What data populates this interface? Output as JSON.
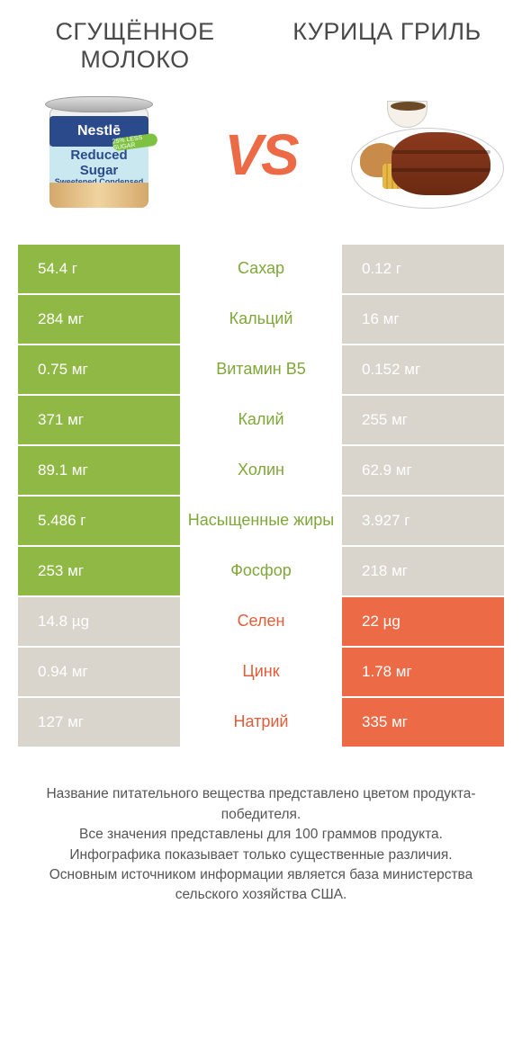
{
  "colors": {
    "green": "#8fb944",
    "orange": "#ec6a45",
    "muted": "#d9d4cc",
    "text_green": "#7fa739",
    "text_orange": "#e05e3a"
  },
  "header": {
    "left_title": "СГУЩЁННОЕ МОЛОКО",
    "right_title": "КУРИЦА ГРИЛЬ",
    "vs": "VS"
  },
  "can": {
    "brand": "Nestlē",
    "line1": "Reduced",
    "line2": "Sugar",
    "line3": "Sweetened Condensed Milk",
    "badge": "25% LESS SUGAR"
  },
  "rows": [
    {
      "nutrient": "Сахар",
      "left": "54.4 г",
      "right": "0.12 г",
      "winner": "left"
    },
    {
      "nutrient": "Кальций",
      "left": "284 мг",
      "right": "16 мг",
      "winner": "left"
    },
    {
      "nutrient": "Витамин B5",
      "left": "0.75 мг",
      "right": "0.152 мг",
      "winner": "left"
    },
    {
      "nutrient": "Калий",
      "left": "371 мг",
      "right": "255 мг",
      "winner": "left"
    },
    {
      "nutrient": "Холин",
      "left": "89.1 мг",
      "right": "62.9 мг",
      "winner": "left"
    },
    {
      "nutrient": "Насыщенные жиры",
      "left": "5.486 г",
      "right": "3.927 г",
      "winner": "left"
    },
    {
      "nutrient": "Фосфор",
      "left": "253 мг",
      "right": "218 мг",
      "winner": "left"
    },
    {
      "nutrient": "Селен",
      "left": "14.8 µg",
      "right": "22 µg",
      "winner": "right"
    },
    {
      "nutrient": "Цинк",
      "left": "0.94 мг",
      "right": "1.78 мг",
      "winner": "right"
    },
    {
      "nutrient": "Натрий",
      "left": "127 мг",
      "right": "335 мг",
      "winner": "right"
    }
  ],
  "footer": {
    "l1": "Название питательного вещества представлено цветом продукта-победителя.",
    "l2": "Все значения представлены для 100 граммов продукта.",
    "l3": "Инфографика показывает только существенные различия.",
    "l4": "Основным источником информации является база министерства сельского хозяйства США."
  }
}
